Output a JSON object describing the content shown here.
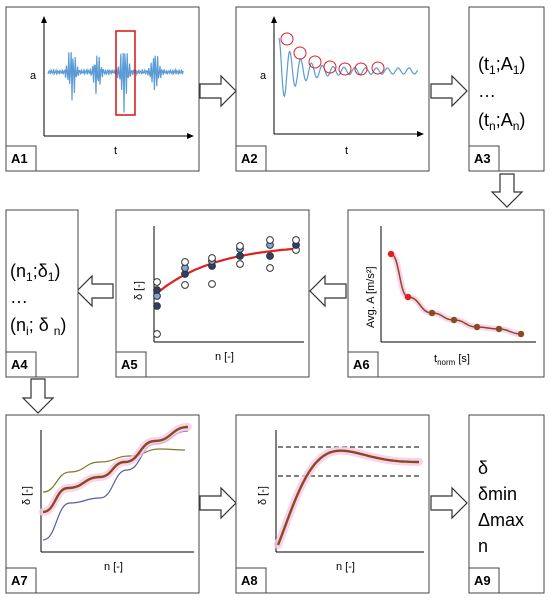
{
  "panels": {
    "a1": {
      "label": "A1",
      "ylabel": "a",
      "xlabel": "t"
    },
    "a2": {
      "label": "A2",
      "ylabel": "a",
      "xlabel": "t"
    },
    "a3": {
      "label": "A3",
      "line1_main": "(t",
      "line1_sub": "1",
      "line1_rest": ";A",
      "line1_sub2": "1",
      "line1_end": ")",
      "ellipsis": "…",
      "line2_main": "(t",
      "line2_sub": "n",
      "line2_rest": ";A",
      "line2_sub2": "n",
      "line2_end": ")"
    },
    "a4": {
      "label": "A4",
      "line1_main": "(n",
      "line1_sub": "1",
      "line1_rest": ";δ",
      "line1_sub2": "1",
      "line1_end": ")",
      "ellipsis": "…",
      "line2_main": "(n",
      "line2_sub": "i",
      "line2_rest": "; δ ",
      "line2_sub2": "n",
      "line2_end": ")"
    },
    "a5": {
      "label": "A5",
      "ylabel": "δ [-]",
      "xlabel": "n [-]"
    },
    "a6": {
      "label": "A6",
      "ylabel": "Avg. A [m/s²]",
      "xlabel_main": "t",
      "xlabel_sub": "norm",
      "xlabel_rest": " [s]"
    },
    "a7": {
      "label": "A7",
      "ylabel": "δ [-]",
      "xlabel": "n [-]"
    },
    "a8": {
      "label": "A8",
      "ylabel": "δ [-]",
      "xlabel": "n [-]"
    },
    "a9": {
      "label": "A9",
      "items": [
        "δ",
        "δmin",
        "Δmax",
        "n"
      ]
    }
  },
  "colors": {
    "signal": "#5b9bd5",
    "highlight": "#e02020",
    "fit": "#e02020",
    "trend": "#8b4a1e",
    "trend_glow": "#f6c8ea",
    "upper_line": "#7a7a2a",
    "lower_line": "#5a5aa8",
    "arrow_fill": "#ffffff"
  }
}
